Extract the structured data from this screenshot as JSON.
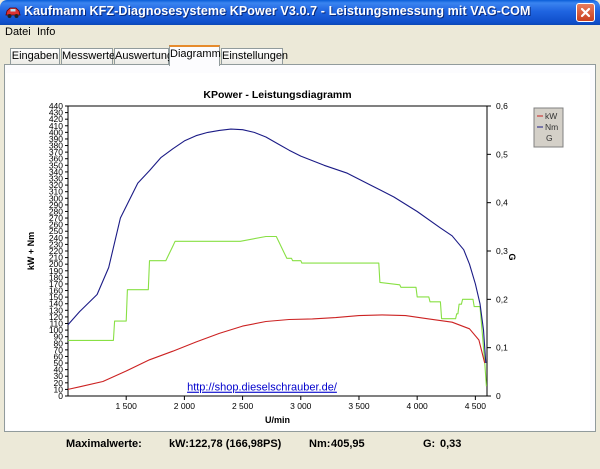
{
  "window": {
    "title": "Kaufmann KFZ-Diagnosesysteme  KPower V3.0.7 - Leistungsmessung mit VAG-COM"
  },
  "menu": [
    "Datei",
    "Info"
  ],
  "tabs": [
    {
      "label": "Eingaben",
      "active": false
    },
    {
      "label": "Messwerte",
      "active": false
    },
    {
      "label": "Auswertung",
      "active": false
    },
    {
      "label": "Diagramm",
      "active": true
    },
    {
      "label": "Einstellungen",
      "active": false
    }
  ],
  "colors": {
    "kw": "#CC2222",
    "nm": "#1B1B86",
    "g": "#88E044",
    "link": "#0000CC"
  },
  "chart_data": {
    "type": "line",
    "title": "KPower - Leistungsdiagramm",
    "xlabel": "U/min",
    "ylabel": "kW + Nm",
    "y2label": "G",
    "xlim": [
      1000,
      4600
    ],
    "ylim": [
      0,
      440
    ],
    "y2lim": [
      0,
      0.6
    ],
    "x_ticks": [
      "1 500",
      "2 000",
      "2 500",
      "3 000",
      "3 500",
      "4 000",
      "4 500"
    ],
    "y_ticks": [
      "0",
      "10",
      "20",
      "30",
      "40",
      "50",
      "60",
      "70",
      "80",
      "90",
      "100",
      "110",
      "120",
      "130",
      "140",
      "150",
      "160",
      "170",
      "180",
      "190",
      "200",
      "210",
      "220",
      "230",
      "240",
      "250",
      "260",
      "270",
      "280",
      "290",
      "300",
      "310",
      "320",
      "330",
      "340",
      "350",
      "360",
      "370",
      "380",
      "390",
      "400",
      "410",
      "420",
      "430",
      "440"
    ],
    "y2_ticks": [
      "0",
      "0,1",
      "0,2",
      "0,3",
      "0,4",
      "0,5",
      "0,6"
    ],
    "legend": {
      "placement": "top-right",
      "entries": [
        "kW",
        "Nm",
        "G"
      ]
    },
    "annotation": "http://shop.dieselschrauber.de/",
    "series": [
      {
        "name": "kW",
        "axis": "left",
        "color": "#CC2222",
        "x": [
          1000,
          1100,
          1300,
          1500,
          1700,
          1900,
          2100,
          2300,
          2500,
          2700,
          2900,
          3100,
          3300,
          3500,
          3700,
          3900,
          4100,
          4300,
          4450,
          4530,
          4580
        ],
        "y": [
          10,
          14,
          22,
          38,
          55,
          68,
          82,
          95,
          106,
          113,
          116,
          117,
          119,
          122,
          123,
          122,
          117,
          112,
          102,
          85,
          50
        ]
      },
      {
        "name": "Nm",
        "axis": "left",
        "color": "#1B1B86",
        "x": [
          1000,
          1100,
          1250,
          1350,
          1450,
          1600,
          1700,
          1800,
          1900,
          2000,
          2100,
          2200,
          2300,
          2400,
          2500,
          2600,
          2700,
          2800,
          2900,
          3000,
          3200,
          3400,
          3600,
          3800,
          4000,
          4200,
          4300,
          4400,
          4450,
          4500,
          4540,
          4570,
          4590
        ],
        "y": [
          108,
          128,
          154,
          195,
          270,
          323,
          342,
          362,
          375,
          387,
          395,
          400,
          403,
          405,
          404,
          400,
          393,
          383,
          373,
          364,
          350,
          338,
          320,
          302,
          280,
          255,
          243,
          222,
          200,
          170,
          140,
          100,
          50
        ]
      },
      {
        "name": "G",
        "axis": "right",
        "color": "#88E044",
        "x": [
          1000,
          1300,
          1310,
          1390,
          1400,
          1430,
          1440,
          1500,
          1510,
          1630,
          1640,
          1690,
          1700,
          1830,
          1840,
          1900,
          1920,
          2400,
          2480,
          2700,
          2790,
          2870,
          2880,
          2920,
          2930,
          3000,
          3010,
          3500,
          3510,
          3670,
          3680,
          3850,
          3860,
          3990,
          4000,
          4100,
          4110,
          4200,
          4210,
          4330,
          4340,
          4350,
          4360,
          4380,
          4390,
          4420,
          4430,
          4480,
          4490,
          4540,
          4560,
          4580,
          4595
        ],
        "y": [
          0.115,
          0.115,
          0.115,
          0.115,
          0.155,
          0.155,
          0.155,
          0.155,
          0.22,
          0.22,
          0.22,
          0.22,
          0.28,
          0.28,
          0.28,
          0.31,
          0.32,
          0.32,
          0.32,
          0.33,
          0.33,
          0.29,
          0.285,
          0.285,
          0.28,
          0.28,
          0.275,
          0.275,
          0.275,
          0.275,
          0.235,
          0.23,
          0.225,
          0.225,
          0.205,
          0.205,
          0.195,
          0.195,
          0.16,
          0.16,
          0.17,
          0.17,
          0.19,
          0.19,
          0.2,
          0.2,
          0.2,
          0.2,
          0.185,
          0.185,
          0.13,
          0.07,
          0.02
        ]
      }
    ]
  },
  "status": {
    "max_label": "Maximalwerte:",
    "kw_label": "kW:",
    "kw_value": "122,78 (166,98PS)",
    "nm_label": "Nm:",
    "nm_value": "405,95",
    "g_label": "G:",
    "g_value": "0,33"
  }
}
